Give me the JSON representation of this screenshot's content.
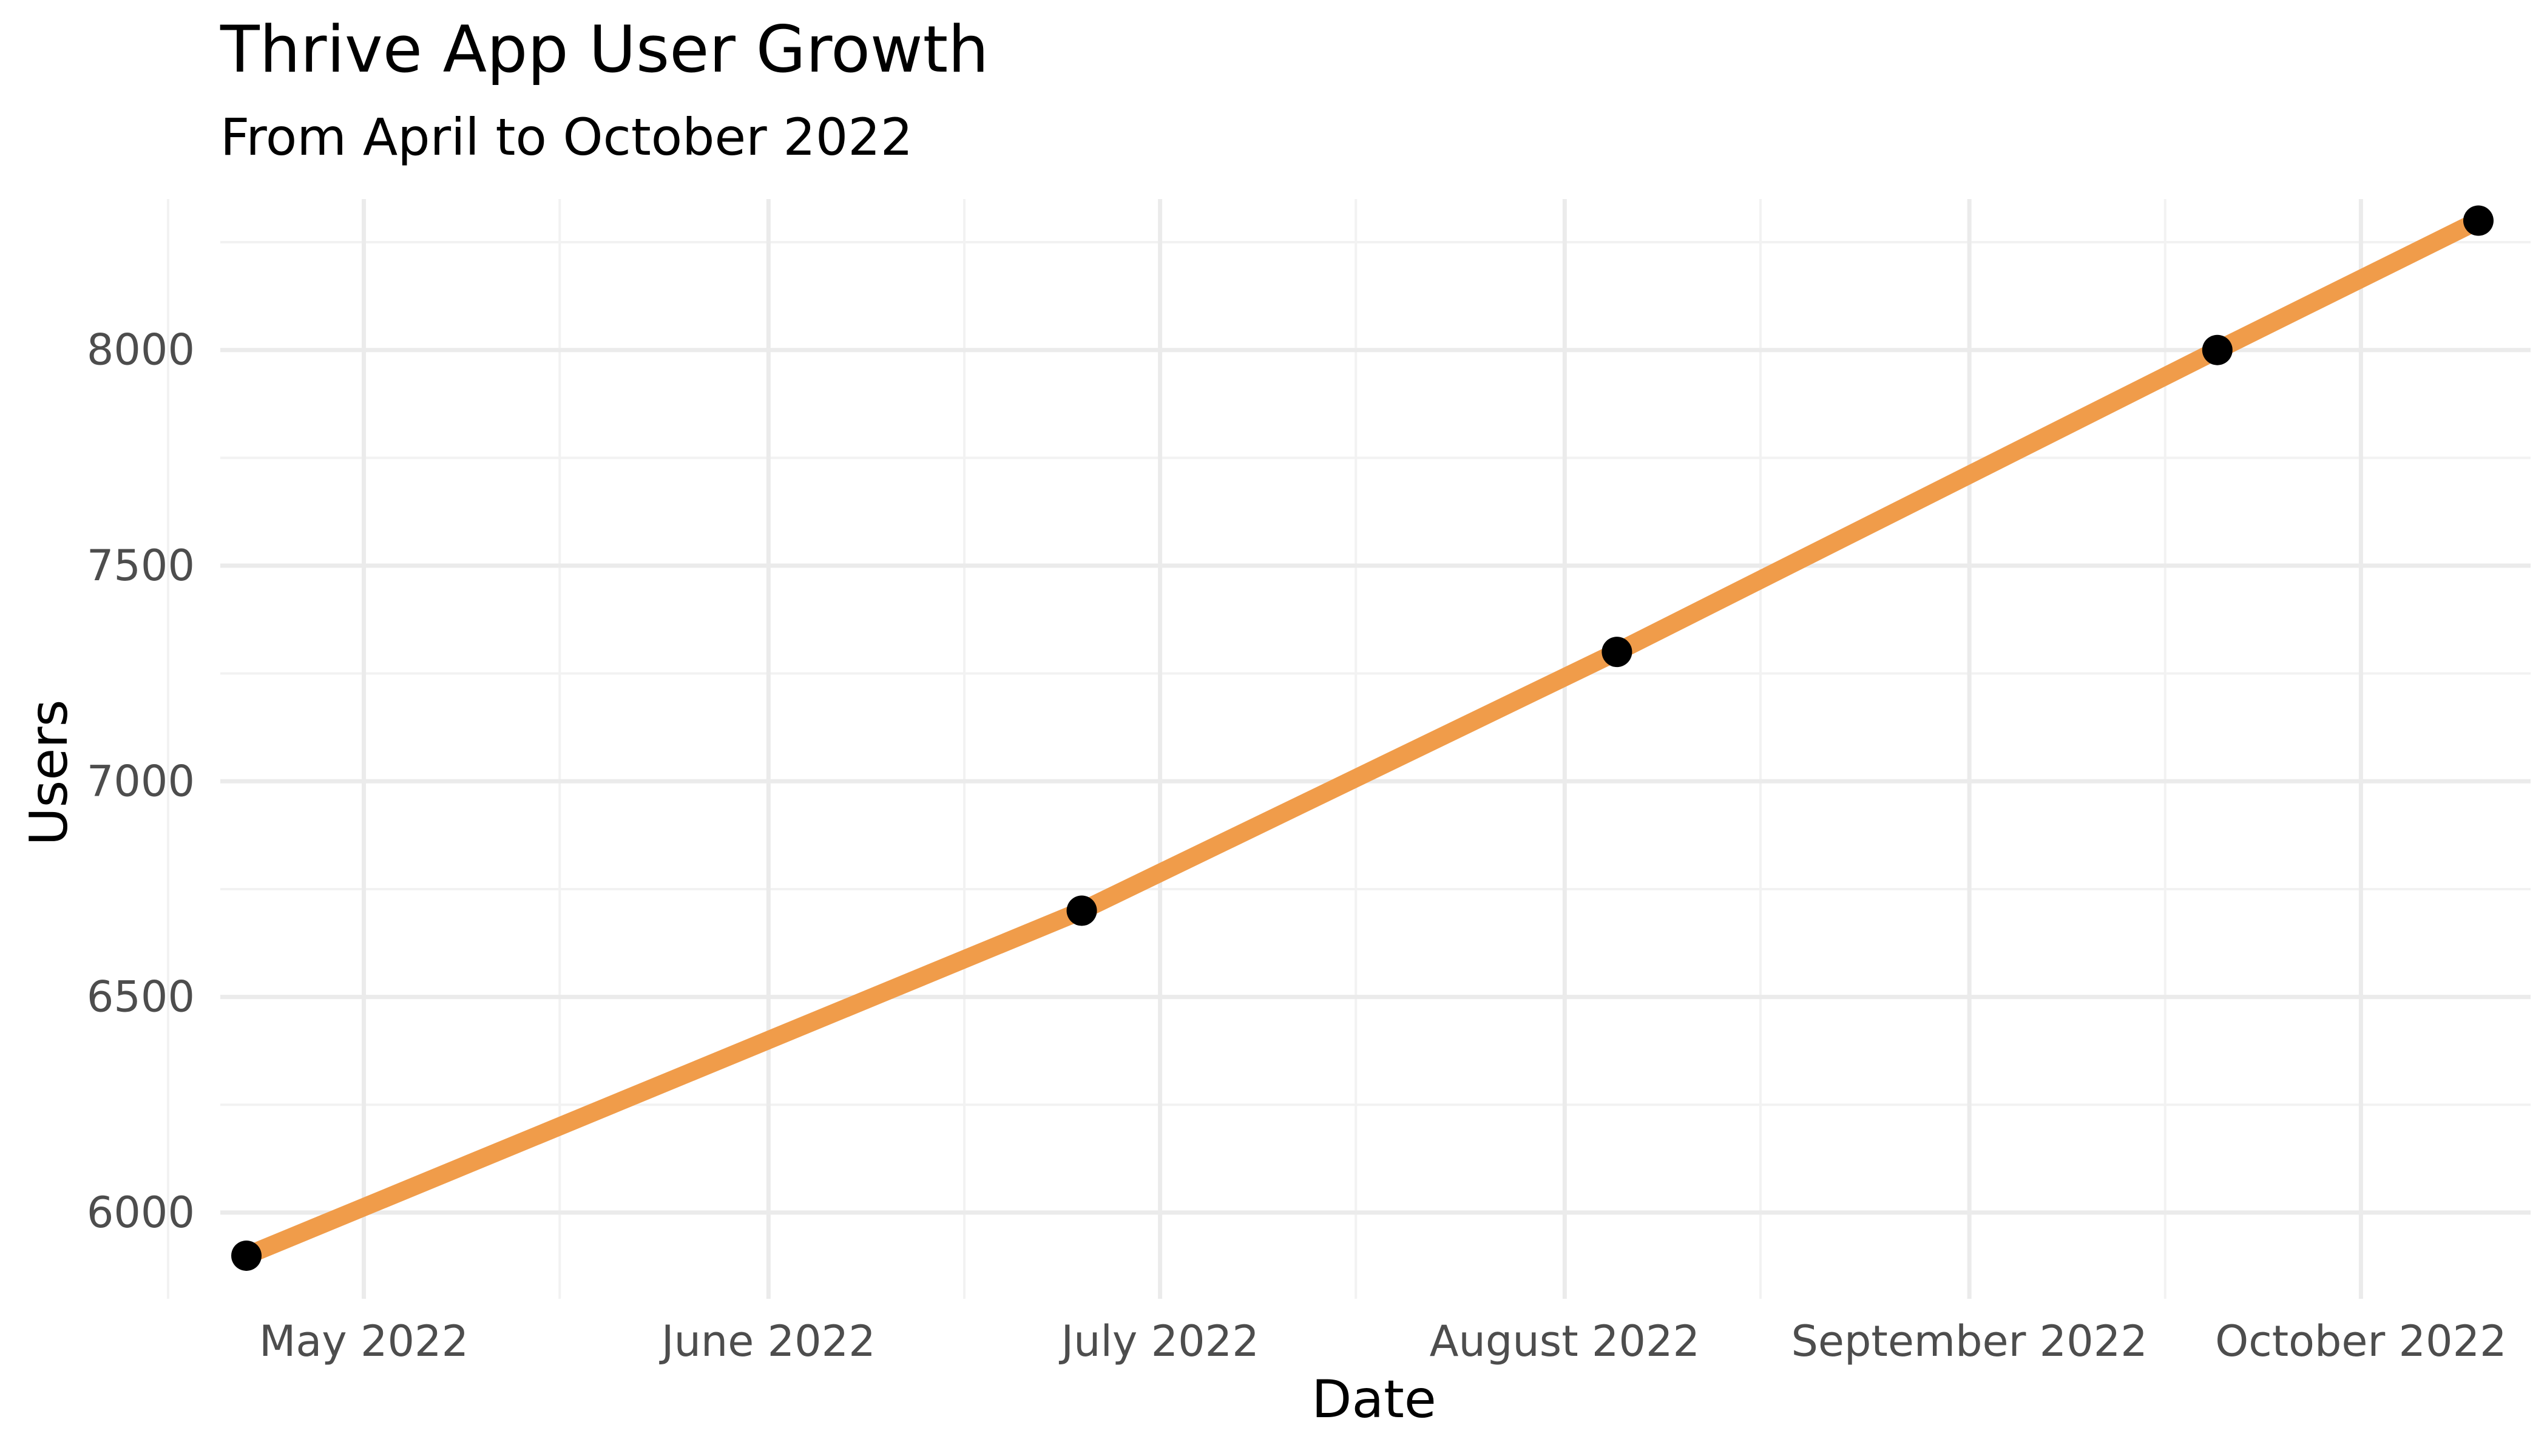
{
  "chart_data": {
    "type": "line",
    "title": "Thrive App User Growth",
    "subtitle": "From April to October 2022",
    "xlabel": "Date",
    "ylabel": "Users",
    "x_axis_type": "date",
    "xlim": [
      "2022-04-20",
      "2022-10-14"
    ],
    "ylim": [
      5800,
      8350
    ],
    "x_ticks": [
      {
        "date": "2022-05-01",
        "label": "May 2022"
      },
      {
        "date": "2022-06-01",
        "label": "June 2022"
      },
      {
        "date": "2022-07-01",
        "label": "July 2022"
      },
      {
        "date": "2022-08-01",
        "label": "August 2022"
      },
      {
        "date": "2022-09-01",
        "label": "September 2022"
      },
      {
        "date": "2022-10-01",
        "label": "October 2022"
      }
    ],
    "x_minor_ticks": [
      "2022-04-16",
      "2022-05-16",
      "2022-06-16",
      "2022-07-16",
      "2022-08-16",
      "2022-09-16"
    ],
    "y_ticks": [
      6000,
      6500,
      7000,
      7500,
      8000
    ],
    "y_minor_ticks": [
      6250,
      6750,
      7250,
      7750,
      8250
    ],
    "grid": true,
    "series": [
      {
        "x": [
          "2022-04-22",
          "2022-06-25",
          "2022-08-05",
          "2022-09-20",
          "2022-10-10"
        ],
        "y": [
          5900,
          6700,
          7300,
          8000,
          8300
        ],
        "line_color": "#f09c4a",
        "point_color": "#000000"
      }
    ]
  }
}
